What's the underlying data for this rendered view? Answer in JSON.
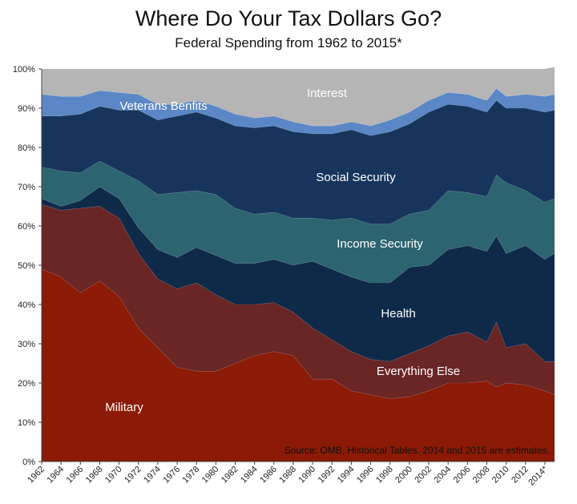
{
  "chart_data": {
    "type": "area",
    "stacked": true,
    "percent": true,
    "title": "Where Do Your Tax Dollars Go?",
    "subtitle": "Federal Spending from 1962 to 2015*",
    "source": "Source: OMB, Historical Tables. 2014 and 2015 are estimates.",
    "ylim": [
      0,
      100
    ],
    "y_ticks": [
      "0%",
      "10%",
      "20%",
      "30%",
      "40%",
      "50%",
      "60%",
      "70%",
      "80%",
      "90%",
      "100%"
    ],
    "x_tick_labels": [
      "1962",
      "1964",
      "1966",
      "1968",
      "1970",
      "1972",
      "1974",
      "1976",
      "1978",
      "1980",
      "1982",
      "1984",
      "1986",
      "1988",
      "1990",
      "1992",
      "1994",
      "1996",
      "1998",
      "2000",
      "2002",
      "2004",
      "2006",
      "2008",
      "2010",
      "2012",
      "2014*"
    ],
    "x": [
      1962,
      1964,
      1966,
      1968,
      1970,
      1972,
      1974,
      1976,
      1978,
      1980,
      1982,
      1984,
      1986,
      1988,
      1990,
      1992,
      1994,
      1996,
      1998,
      2000,
      2002,
      2004,
      2006,
      2008,
      2009,
      2010,
      2012,
      2014,
      2015
    ],
    "series": [
      {
        "name": "Military",
        "color": "#8b1a06",
        "values": [
          49,
          47,
          43,
          46,
          42,
          34,
          29,
          24,
          23,
          23,
          25,
          27,
          28,
          27,
          21,
          21,
          18,
          17,
          16,
          16.5,
          18,
          20,
          20,
          20.5,
          19,
          20,
          19.5,
          18,
          17
        ]
      },
      {
        "name": "Everything Else",
        "color": "#6a2525",
        "values": [
          16.5,
          17,
          21.5,
          19,
          20,
          19,
          17.5,
          20,
          22.5,
          19.5,
          15,
          13,
          12.5,
          11,
          13,
          10,
          10,
          9,
          9.5,
          11,
          11.5,
          12,
          13,
          10,
          16.5,
          9,
          10.5,
          7.5,
          8.5
        ]
      },
      {
        "name": "Health",
        "color": "#0f2a48",
        "values": [
          1.5,
          1,
          2,
          5,
          5,
          6.5,
          7.5,
          8,
          9,
          10,
          10.5,
          10.5,
          11,
          12,
          17,
          18,
          19,
          19.5,
          20,
          22,
          20.5,
          22,
          22,
          23,
          22,
          24,
          25,
          26,
          27.5
        ]
      },
      {
        "name": "Income Security",
        "color": "#2c6470",
        "values": [
          8,
          9,
          7,
          6.5,
          7,
          12,
          14,
          16.5,
          14.5,
          15.5,
          14,
          12.5,
          12,
          12,
          11,
          12.5,
          15,
          15,
          15,
          13.5,
          14,
          15,
          13.5,
          14,
          15.5,
          18,
          14,
          14.5,
          14
        ]
      },
      {
        "name": "Social Security",
        "color": "#17355c",
        "values": [
          13,
          14,
          15,
          14,
          15.5,
          18,
          19,
          19.5,
          20,
          19.5,
          21,
          22,
          22,
          22,
          21.5,
          22,
          22.5,
          22.5,
          23.5,
          23,
          25,
          22,
          22,
          21.5,
          19,
          19,
          21,
          23,
          22.5
        ]
      },
      {
        "name": "Veterans Benfits",
        "color": "#5b87c6",
        "values": [
          5.5,
          5,
          4.5,
          4,
          4.5,
          4,
          4,
          3,
          3,
          3,
          3,
          2.5,
          2.5,
          2.5,
          2,
          2,
          2,
          2.5,
          3,
          3,
          3,
          3,
          3,
          3,
          3,
          3,
          3.5,
          4,
          4
        ]
      },
      {
        "name": "Interest",
        "color": "#b5b5b5",
        "values": [
          6.5,
          7,
          7,
          5.5,
          6,
          6.5,
          9,
          9,
          8,
          9.5,
          11.5,
          12.5,
          12,
          13.5,
          14.5,
          14.5,
          13.5,
          14.5,
          13,
          11,
          8,
          6,
          6.5,
          8,
          5,
          7,
          6.5,
          7,
          7
        ]
      }
    ],
    "labels": {
      "military": "Military",
      "everything_else": "Everything Else",
      "health": "Health",
      "income_security": "Income Security",
      "social_security": "Social Security",
      "veterans": "Veterans Benfits",
      "interest": "Interest"
    }
  }
}
